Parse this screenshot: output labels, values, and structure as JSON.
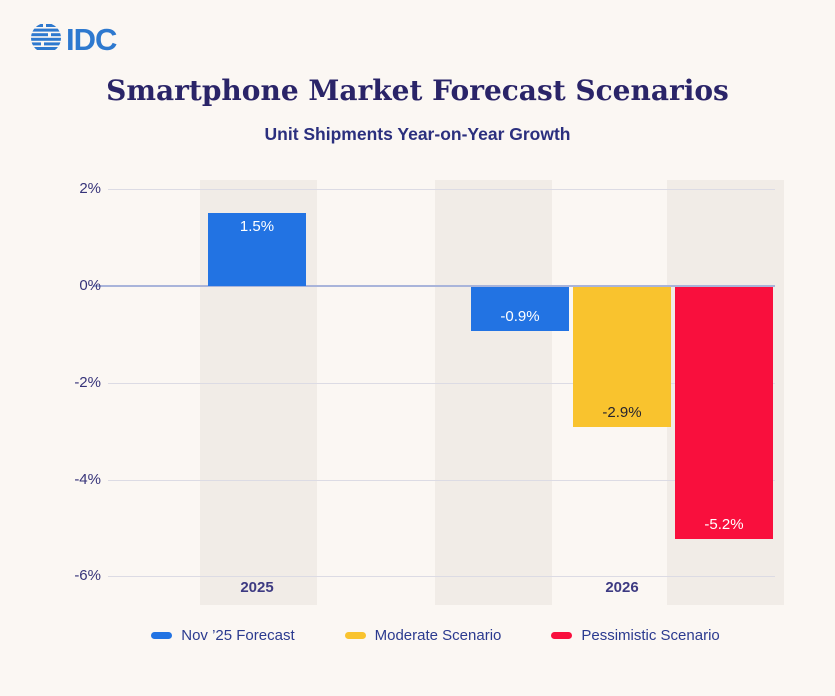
{
  "logo": {
    "text": "IDC",
    "color": "#2e79cf",
    "icon": "striped-globe-icon"
  },
  "header": {
    "title": "Smartphone Market Forecast Scenarios",
    "subtitle": "Unit Shipments Year-on-Year Growth"
  },
  "chart_data": {
    "type": "bar",
    "title": "Smartphone Market Forecast Scenarios",
    "subtitle": "Unit Shipments Year-on-Year Growth",
    "categories": [
      {
        "label": "2025"
      },
      {
        "label": "2026"
      }
    ],
    "y_axis": {
      "unit": "%",
      "min": -6,
      "max": 2,
      "grid": "horizontal",
      "ticks": [
        {
          "label": "2%",
          "value": 2
        },
        {
          "label": "0%",
          "value": 0
        },
        {
          "label": "-2%",
          "value": -2
        },
        {
          "label": "-4%",
          "value": -4
        },
        {
          "label": "-6%",
          "value": -6
        }
      ]
    },
    "series": [
      {
        "name": "Nov ’25 Forecast",
        "color": "#2273e3",
        "values": [
          1.5,
          -0.9
        ]
      },
      {
        "name": "Moderate Scenario",
        "color": "#f9c32e",
        "values": [
          null,
          -2.9
        ]
      },
      {
        "name": "Pessimistic Scenario",
        "color": "#f90f3d",
        "values": [
          null,
          -5.2
        ]
      }
    ],
    "bars": [
      {
        "category": "2025",
        "series": "Nov ’25 Forecast",
        "value": 1.5,
        "label": "1.5%",
        "color": "#2273e3",
        "label_color": "#ffffff"
      },
      {
        "category": "2026",
        "series": "Nov ’25 Forecast",
        "value": -0.9,
        "label": "-0.9%",
        "color": "#2273e3",
        "label_color": "#ffffff"
      },
      {
        "category": "2026",
        "series": "Moderate Scenario",
        "value": -2.9,
        "label": "-2.9%",
        "color": "#f9c32e",
        "label_color": "#26242e"
      },
      {
        "category": "2026",
        "series": "Pessimistic Scenario",
        "value": -5.2,
        "label": "-5.2%",
        "color": "#f90f3d",
        "label_color": "#ffffff"
      }
    ],
    "legend": {
      "position": "bottom",
      "items": [
        "Nov ’25 Forecast",
        "Moderate Scenario",
        "Pessimistic Scenario"
      ]
    }
  },
  "colors": {
    "background": "#fbf7f3",
    "band": "#f1ece7",
    "zero_line": "#a9b4da",
    "gridline": "#dcdbe4",
    "title_text": "#2a2468",
    "axis_text": "#363379",
    "legend_text": "#2b3a8f"
  }
}
